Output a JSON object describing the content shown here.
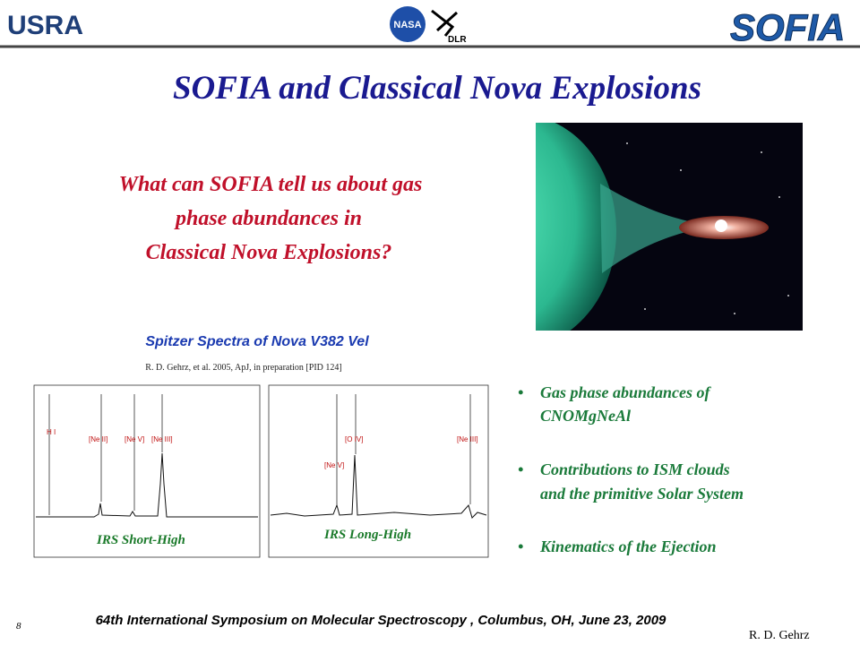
{
  "header": {
    "logos": [
      "USRA",
      "NASA",
      "DLR",
      "SOFIA"
    ]
  },
  "title": "SOFIA and Classical Nova Explosions",
  "question": [
    "What can SOFIA tell us about gas",
    "phase abundances in",
    "Classical Nova Explosions?"
  ],
  "figure": {
    "title": "Spitzer Spectra of Nova V382 Vel",
    "citation": "R. D. Gehrz, et al. 2005, ApJ, in preparation [PID 124]",
    "panels": [
      {
        "label": "IRS Short-High",
        "lines": [
          "H I",
          "[Ne II]",
          "[Ne V]",
          "[Ne III]"
        ]
      },
      {
        "label": "IRS Long-High",
        "lines": [
          "[Ne V]",
          "[O IV]",
          "[Ne III]"
        ]
      }
    ]
  },
  "bullets": [
    [
      "Gas phase abundances of",
      "CNOMgNeAl"
    ],
    [
      "Contributions to ISM clouds",
      "and the primitive Solar System"
    ],
    [
      "Kinematics of the Ejection"
    ]
  ],
  "footer": {
    "page": "8",
    "event": "64th International Symposium on Molecular Spectroscopy , Columbus, OH, June 23, 2009",
    "author": "R.  D. Gehrz"
  }
}
